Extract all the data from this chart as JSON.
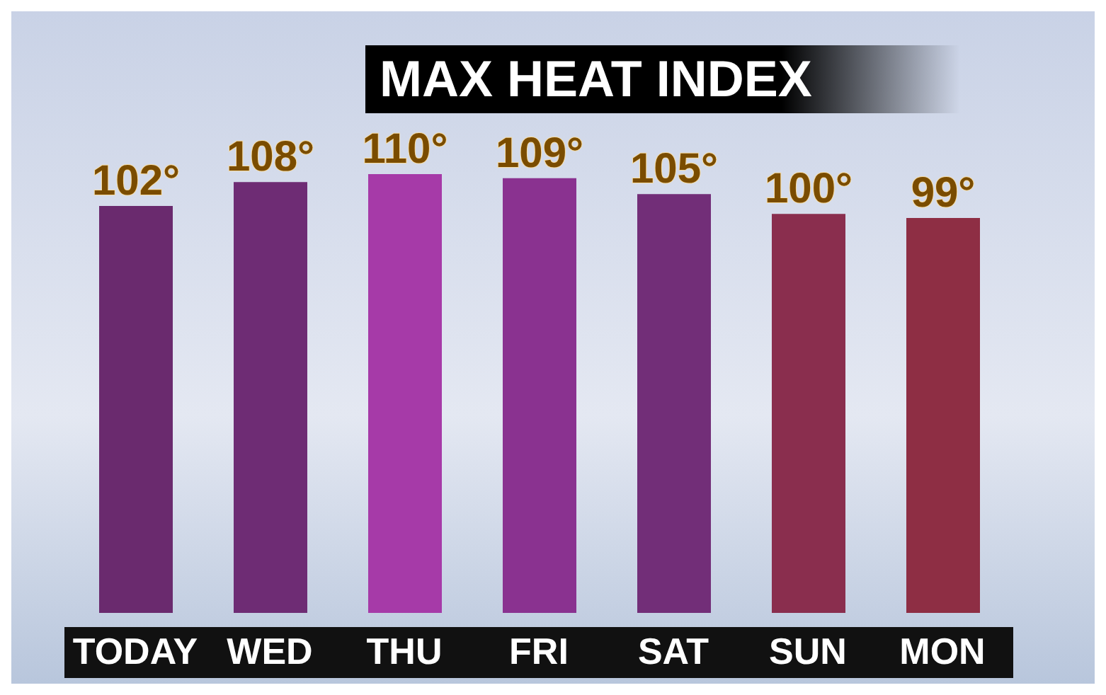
{
  "chart_data": {
    "type": "bar",
    "title": "MAX HEAT INDEX",
    "categories": [
      "TODAY",
      "WED",
      "THU",
      "FRI",
      "SAT",
      "SUN",
      "MON"
    ],
    "values": [
      102,
      108,
      110,
      109,
      105,
      100,
      99
    ],
    "value_labels": [
      "102°",
      "108°",
      "110°",
      "109°",
      "105°",
      "100°",
      "99°"
    ],
    "colors": [
      "#6a2a6e",
      "#6e2c74",
      "#a63aa8",
      "#8a3290",
      "#722e78",
      "#8a2e4e",
      "#8e2e44"
    ]
  }
}
